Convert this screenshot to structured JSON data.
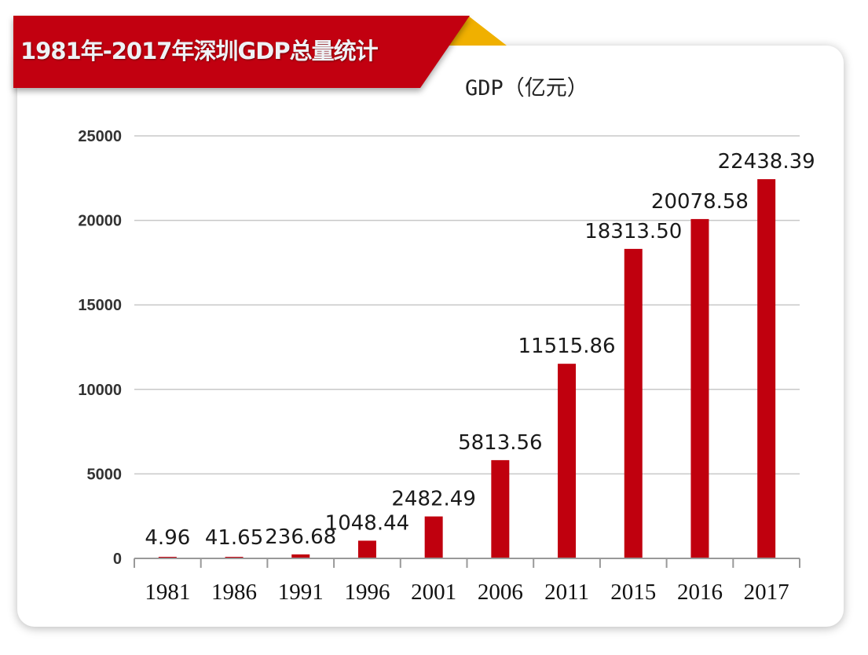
{
  "header": {
    "title": "1981年-2017年深圳GDP总量统计"
  },
  "colors": {
    "bar": "#c0000e",
    "banner": "#c20010",
    "fold": "#f0b000",
    "grid": "#c8c8c8"
  },
  "chart_data": {
    "type": "bar",
    "title": "1981年-2017年深圳GDP总量统计",
    "subtitle": "GDP（亿元）",
    "xlabel": "",
    "ylabel": "",
    "categories": [
      "1981",
      "1986",
      "1991",
      "1996",
      "2001",
      "2006",
      "2011",
      "2015",
      "2016",
      "2017"
    ],
    "values": [
      4.96,
      41.65,
      236.68,
      1048.44,
      2482.49,
      5813.56,
      11515.86,
      18313.5,
      20078.58,
      22438.39
    ],
    "data_labels": [
      "4.96",
      "41.65",
      "236.68",
      "1048.44",
      "2482.49",
      "5813.56",
      "11515.86",
      "18313.50",
      "20078.58",
      "22438.39"
    ],
    "ylim": [
      0,
      25000
    ],
    "yticks": [
      0,
      5000,
      10000,
      15000,
      20000,
      25000
    ],
    "grid": true,
    "legend": "none"
  }
}
